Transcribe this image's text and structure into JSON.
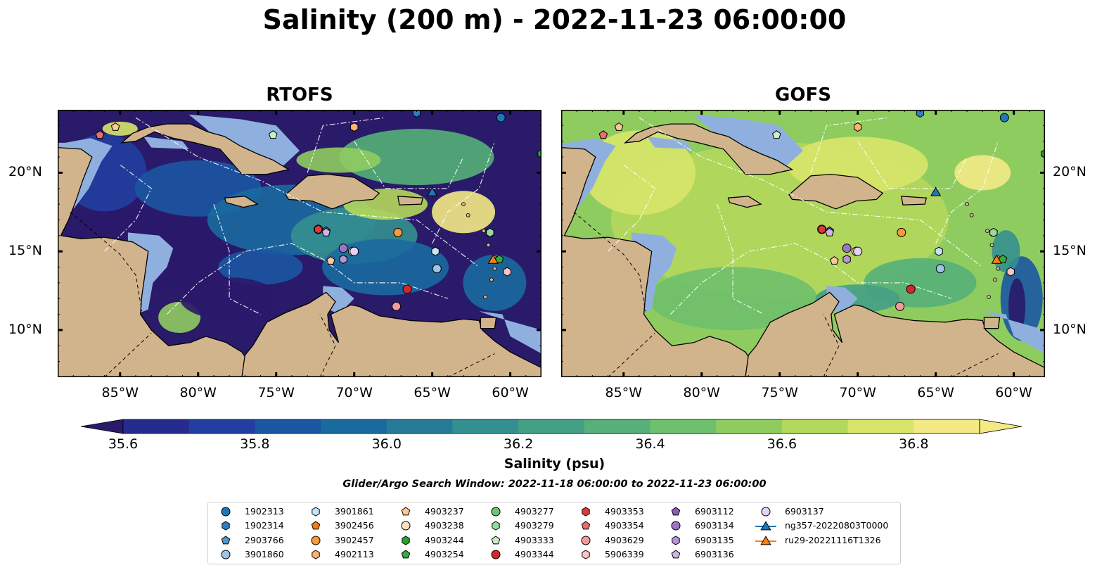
{
  "title": "Salinity (200 m) - 2022-11-23 06:00:00",
  "panels": [
    {
      "title": "RTOFS",
      "field": "rtofs"
    },
    {
      "title": "GOFS",
      "field": "gofs"
    }
  ],
  "map": {
    "lon_range": [
      -89,
      -58
    ],
    "lat_range": [
      7,
      24
    ],
    "lon_ticks": [
      {
        "value": -85,
        "label": "85°W"
      },
      {
        "value": -80,
        "label": "80°W"
      },
      {
        "value": -75,
        "label": "75°W"
      },
      {
        "value": -70,
        "label": "70°W"
      },
      {
        "value": -65,
        "label": "65°W"
      },
      {
        "value": -60,
        "label": "60°W"
      }
    ],
    "lat_ticks": [
      {
        "value": 20,
        "label": "20°N"
      },
      {
        "value": 15,
        "label": "15°N"
      },
      {
        "value": 10,
        "label": "10°N"
      }
    ],
    "colors": {
      "land": "#d2b48c",
      "shelf": "#8fb0de",
      "coast": "#000000"
    }
  },
  "colorbar": {
    "label": "Salinity (psu)",
    "min": 35.5,
    "max": 36.9,
    "levels": [
      35.6,
      35.7,
      35.8,
      35.9,
      36.0,
      36.1,
      36.2,
      36.3,
      36.4,
      36.5,
      36.6,
      36.7,
      36.8
    ],
    "colors": [
      "#2a1a6a",
      "#262b8e",
      "#213ea0",
      "#1b56a3",
      "#1a6aa0",
      "#277b99",
      "#34908f",
      "#44a085",
      "#55b079",
      "#6fc06c",
      "#8fcc60",
      "#b4d85c",
      "#d8e56a",
      "#f3ea86"
    ],
    "ticks": [
      {
        "value": 35.6,
        "label": "35.6"
      },
      {
        "value": 35.8,
        "label": "35.8"
      },
      {
        "value": 36.0,
        "label": "36.0"
      },
      {
        "value": 36.2,
        "label": "36.2"
      },
      {
        "value": 36.4,
        "label": "36.4"
      },
      {
        "value": 36.6,
        "label": "36.6"
      },
      {
        "value": 36.8,
        "label": "36.8"
      }
    ]
  },
  "search_window": "Glider/Argo Search Window: 2022-11-18 06:00:00 to 2022-11-23 06:00:00",
  "legend": [
    {
      "label": "1902313",
      "marker": "circle",
      "color": "#1f77b4"
    },
    {
      "label": "1902314",
      "marker": "hexagon",
      "color": "#2e7fc0"
    },
    {
      "label": "2903766",
      "marker": "pentagon",
      "color": "#4f97cf"
    },
    {
      "label": "3901860",
      "marker": "circle",
      "color": "#9ec4e6"
    },
    {
      "label": "3901861",
      "marker": "hexagon",
      "color": "#c6e4f4"
    },
    {
      "label": "3902456",
      "marker": "pentagon",
      "color": "#f07f19"
    },
    {
      "label": "3902457",
      "marker": "circle",
      "color": "#f79a3a"
    },
    {
      "label": "4902113",
      "marker": "hexagon",
      "color": "#fcb270"
    },
    {
      "label": "4903237",
      "marker": "pentagon",
      "color": "#fdc894"
    },
    {
      "label": "4903238",
      "marker": "circle",
      "color": "#fde0c0"
    },
    {
      "label": "4903244",
      "marker": "hexagon",
      "color": "#2ca02c"
    },
    {
      "label": "4903254",
      "marker": "pentagon",
      "color": "#3aaa3a"
    },
    {
      "label": "4903277",
      "marker": "circle",
      "color": "#6cc46c"
    },
    {
      "label": "4903279",
      "marker": "hexagon",
      "color": "#9bd89b"
    },
    {
      "label": "4903333",
      "marker": "pentagon",
      "color": "#c9efc4"
    },
    {
      "label": "4903344",
      "marker": "circle",
      "color": "#d62728"
    },
    {
      "label": "4903353",
      "marker": "hexagon",
      "color": "#de3a3c"
    },
    {
      "label": "4903354",
      "marker": "pentagon",
      "color": "#eb6d6e"
    },
    {
      "label": "4903629",
      "marker": "circle",
      "color": "#f39a9a"
    },
    {
      "label": "5906339",
      "marker": "hexagon",
      "color": "#f9c4c2"
    },
    {
      "label": "6903112",
      "marker": "pentagon",
      "color": "#8a5cb8"
    },
    {
      "label": "6903134",
      "marker": "circle",
      "color": "#9c74c4"
    },
    {
      "label": "6903135",
      "marker": "hexagon",
      "color": "#b595d6"
    },
    {
      "label": "6903136",
      "marker": "pentagon",
      "color": "#cdb6e6"
    },
    {
      "label": "6903137",
      "marker": "circle",
      "color": "#e4d2f3"
    },
    {
      "label": "ng357-20220803T0000",
      "marker": "triangle-line",
      "color": "#1f77b4"
    },
    {
      "label": "ru29-20221116T1326",
      "marker": "triangle-line",
      "color": "#ff7f0e"
    }
  ],
  "observations": [
    {
      "id": "1902313",
      "lon": -60.6,
      "lat": 23.5
    },
    {
      "id": "1902314",
      "lon": -66.0,
      "lat": 23.8
    },
    {
      "id": "2903766",
      "lon": -61.3,
      "lat": 16.2
    },
    {
      "id": "3901860",
      "lon": -64.7,
      "lat": 13.9
    },
    {
      "id": "3901861",
      "lon": -64.8,
      "lat": 15.0
    },
    {
      "id": "3902456",
      "lon": -72.3,
      "lat": 16.4
    },
    {
      "id": "3902457",
      "lon": -67.2,
      "lat": 16.2
    },
    {
      "id": "4902113",
      "lon": -70.0,
      "lat": 22.9
    },
    {
      "id": "4903237",
      "lon": -85.3,
      "lat": 22.9
    },
    {
      "id": "4903238",
      "lon": -70.1,
      "lat": 15.0
    },
    {
      "id": "4903244",
      "lon": -58.0,
      "lat": 21.2
    },
    {
      "id": "4903254",
      "lon": -60.7,
      "lat": 14.5
    },
    {
      "id": "4903277",
      "lon": -72.3,
      "lat": 16.4
    },
    {
      "id": "4903279",
      "lon": -61.3,
      "lat": 16.2
    },
    {
      "id": "4903333",
      "lon": -75.2,
      "lat": 22.4
    },
    {
      "id": "4903344",
      "lon": -66.6,
      "lat": 12.6
    },
    {
      "id": "4903353",
      "lon": -72.3,
      "lat": 16.4
    },
    {
      "id": "4903354",
      "lon": -86.3,
      "lat": 22.4
    },
    {
      "id": "4903629",
      "lon": -67.3,
      "lat": 11.5
    },
    {
      "id": "5906339",
      "lon": -60.2,
      "lat": 13.7
    },
    {
      "id": "6903112",
      "lon": -71.8,
      "lat": 16.3
    },
    {
      "id": "6903134",
      "lon": -70.7,
      "lat": 15.2
    },
    {
      "id": "6903135",
      "lon": -70.7,
      "lat": 14.5
    },
    {
      "id": "6903136",
      "lon": -71.8,
      "lat": 16.2
    },
    {
      "id": "6903137",
      "lon": -70.0,
      "lat": 15.0
    },
    {
      "id": "4903237b",
      "lon": -71.5,
      "lat": 14.4
    },
    {
      "id": "ng357-20220803T0000",
      "lon": -65.0,
      "lat": 18.8
    },
    {
      "id": "ru29-20221116T1326",
      "lon": -61.1,
      "lat": 14.5
    }
  ]
}
